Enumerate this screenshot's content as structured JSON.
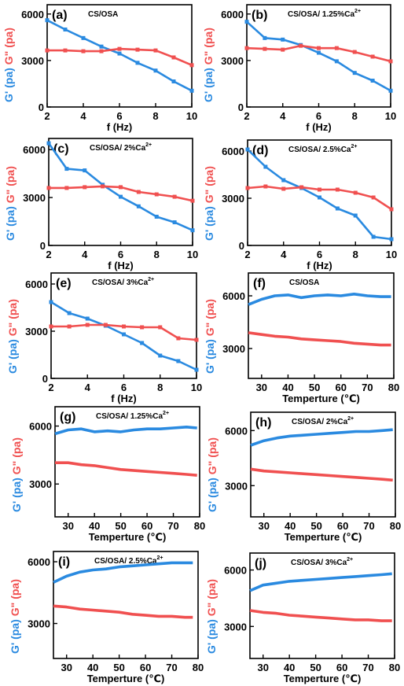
{
  "colors": {
    "g_prime": "#2a8ae0",
    "g_double_prime": "#f05050",
    "axis": "#000000"
  },
  "chart_data": [
    {
      "id": "a",
      "type": "line",
      "panel_label": "(a)",
      "title": "CS/OSA",
      "title_sup": "",
      "xlabel": "f (Hz)",
      "ylabel_left": "G' (pa)",
      "ylabel_right": "G\" (pa)",
      "xlim": [
        2,
        10
      ],
      "ylim": [
        0,
        6600
      ],
      "xticks": [
        2,
        4,
        6,
        8,
        10
      ],
      "yticks": [
        0,
        3000,
        6000
      ],
      "xtick_labels": [
        "2",
        "4",
        "6",
        "8",
        "10"
      ],
      "ytick_labels": [
        "0",
        "3000",
        "6000"
      ],
      "markers": true,
      "legend": "none",
      "series": [
        {
          "key": "g_prime",
          "x": [
            2,
            3,
            4,
            5,
            6,
            7,
            8,
            9,
            10
          ],
          "y": [
            5600,
            5000,
            4450,
            3900,
            3450,
            2850,
            2350,
            1650,
            1050
          ]
        },
        {
          "key": "g_double_prime",
          "x": [
            2,
            3,
            4,
            5,
            6,
            7,
            8,
            9,
            10
          ],
          "y": [
            3650,
            3650,
            3600,
            3600,
            3750,
            3700,
            3650,
            3200,
            2700
          ]
        }
      ]
    },
    {
      "id": "b",
      "type": "line",
      "panel_label": "(b)",
      "title": "CS/OSA/ 1.25%Ca",
      "title_sup": "2+",
      "xlabel": "f (Hz)",
      "ylabel_left": "G' (pa)",
      "ylabel_right": "G\" (pa)",
      "xlim": [
        2,
        10
      ],
      "ylim": [
        0,
        6600
      ],
      "xticks": [
        2,
        4,
        6,
        8,
        10
      ],
      "yticks": [
        0,
        3000,
        6000
      ],
      "xtick_labels": [
        "2",
        "4",
        "6",
        "8",
        "10"
      ],
      "ytick_labels": [
        "0",
        "3000",
        "6000"
      ],
      "markers": true,
      "legend": "none",
      "series": [
        {
          "key": "g_prime",
          "x": [
            2,
            3,
            4,
            5,
            6,
            7,
            8,
            9,
            10
          ],
          "y": [
            5500,
            4450,
            4350,
            4000,
            3500,
            2950,
            2200,
            1700,
            1050
          ]
        },
        {
          "key": "g_double_prime",
          "x": [
            2,
            3,
            4,
            5,
            6,
            7,
            8,
            9,
            10
          ],
          "y": [
            3800,
            3750,
            3700,
            3950,
            3800,
            3800,
            3550,
            3250,
            2950
          ]
        }
      ]
    },
    {
      "id": "c",
      "type": "line",
      "panel_label": "(c)",
      "title": "CS/OSA/ 2%Ca",
      "title_sup": "2+",
      "xlabel": "f (Hz)",
      "ylabel_left": "G' (pa)",
      "ylabel_right": "G\" (pa)",
      "xlim": [
        2,
        10
      ],
      "ylim": [
        0,
        6700
      ],
      "xticks": [
        2,
        4,
        6,
        8,
        10
      ],
      "yticks": [
        0,
        3000,
        6000
      ],
      "xtick_labels": [
        "2",
        "4",
        "6",
        "8",
        "10"
      ],
      "ytick_labels": [
        "0",
        "3000",
        "6000"
      ],
      "markers": true,
      "legend": "none",
      "series": [
        {
          "key": "g_prime",
          "x": [
            2,
            3,
            4,
            5,
            6,
            7,
            8,
            9,
            10
          ],
          "y": [
            6400,
            4800,
            4700,
            3800,
            3050,
            2450,
            1800,
            1450,
            950
          ]
        },
        {
          "key": "g_double_prime",
          "x": [
            2,
            3,
            4,
            5,
            6,
            7,
            8,
            9,
            10
          ],
          "y": [
            3600,
            3600,
            3650,
            3700,
            3650,
            3350,
            3200,
            3050,
            2800
          ]
        }
      ]
    },
    {
      "id": "d",
      "type": "line",
      "panel_label": "(d)",
      "title": "CS/OSA/ 2.5%Ca",
      "title_sup": "2+",
      "xlabel": "f (Hz)",
      "ylabel_left": "G' (pa)",
      "ylabel_right": "G\" (pa)",
      "xlim": [
        2,
        10
      ],
      "ylim": [
        0,
        6700
      ],
      "xticks": [
        2,
        4,
        6,
        8,
        10
      ],
      "yticks": [
        0,
        3000,
        6000
      ],
      "xtick_labels": [
        "2",
        "4",
        "6",
        "8",
        "10"
      ],
      "ytick_labels": [
        "0",
        "3000",
        "6000"
      ],
      "markers": true,
      "legend": "none",
      "series": [
        {
          "key": "g_prime",
          "x": [
            2,
            3,
            4,
            5,
            6,
            7,
            8,
            9,
            10
          ],
          "y": [
            6100,
            5000,
            4150,
            3650,
            3050,
            2350,
            1900,
            550,
            400
          ]
        },
        {
          "key": "g_double_prime",
          "x": [
            2,
            3,
            4,
            5,
            6,
            7,
            8,
            9,
            10
          ],
          "y": [
            3650,
            3750,
            3600,
            3700,
            3550,
            3550,
            3350,
            3050,
            2300
          ]
        }
      ]
    },
    {
      "id": "e",
      "type": "line",
      "panel_label": "(e)",
      "title": "CS/OSA/ 3%Ca",
      "title_sup": "2+",
      "xlabel": "f (Hz)",
      "ylabel_left": "G' (pa)",
      "ylabel_right": "G\" (pa)",
      "xlim": [
        2,
        10
      ],
      "ylim": [
        0,
        6700
      ],
      "xticks": [
        2,
        4,
        6,
        8,
        10
      ],
      "yticks": [
        0,
        3000,
        6000
      ],
      "xtick_labels": [
        "2",
        "4",
        "6",
        "8",
        "10"
      ],
      "ytick_labels": [
        "0",
        "3000",
        "6000"
      ],
      "markers": true,
      "legend": "none",
      "series": [
        {
          "key": "g_prime",
          "x": [
            2,
            3,
            4,
            5,
            6,
            7,
            8,
            9,
            10
          ],
          "y": [
            4850,
            4150,
            3800,
            3350,
            2800,
            2250,
            1450,
            1100,
            550
          ]
        },
        {
          "key": "g_double_prime",
          "x": [
            2,
            3,
            4,
            5,
            6,
            7,
            8,
            9,
            10
          ],
          "y": [
            3300,
            3300,
            3400,
            3400,
            3300,
            3250,
            3250,
            2550,
            2450
          ]
        }
      ]
    },
    {
      "id": "f",
      "type": "line",
      "panel_label": "(f)",
      "title": "CS/OSA",
      "title_sup": "",
      "xlabel": "Temperture (℃)",
      "ylabel_left": "G' (pa)",
      "ylabel_right": "G\" (pa)",
      "xlim": [
        25,
        80
      ],
      "ylim": [
        1300,
        7300
      ],
      "xticks": [
        30,
        40,
        50,
        60,
        70,
        80
      ],
      "yticks": [
        3000,
        6000
      ],
      "xtick_labels": [
        "30",
        "40",
        "50",
        "60",
        "70",
        "80"
      ],
      "ytick_labels": [
        "3000",
        "6000"
      ],
      "markers": false,
      "legend": "none",
      "series": [
        {
          "key": "g_prime",
          "x": [
            25,
            30,
            35,
            40,
            45,
            50,
            55,
            60,
            65,
            70,
            75,
            79
          ],
          "y": [
            5500,
            5800,
            6000,
            6050,
            5900,
            6000,
            6050,
            6000,
            6100,
            6000,
            5950,
            5950
          ]
        },
        {
          "key": "g_double_prime",
          "x": [
            25,
            30,
            35,
            40,
            45,
            50,
            55,
            60,
            65,
            70,
            75,
            79
          ],
          "y": [
            3900,
            3800,
            3700,
            3650,
            3550,
            3500,
            3450,
            3400,
            3300,
            3250,
            3200,
            3200
          ]
        }
      ]
    },
    {
      "id": "g",
      "type": "line",
      "panel_label": "(g)",
      "title": "CS/OSA/ 1.25%Ca",
      "title_sup": "2+",
      "xlabel": "Temperture (℃)",
      "ylabel_left": "G' (pa)",
      "ylabel_right": "G\" (pa)",
      "xlim": [
        25,
        80
      ],
      "ylim": [
        1300,
        7000
      ],
      "xticks": [
        30,
        40,
        50,
        60,
        70,
        80
      ],
      "yticks": [
        3000,
        6000
      ],
      "xtick_labels": [
        "30",
        "40",
        "50",
        "60",
        "70",
        "80"
      ],
      "ytick_labels": [
        "3000",
        "6000"
      ],
      "markers": false,
      "legend": "none",
      "series": [
        {
          "key": "g_prime",
          "x": [
            25,
            30,
            35,
            40,
            45,
            50,
            55,
            60,
            65,
            70,
            75,
            79
          ],
          "y": [
            5600,
            5800,
            5850,
            5700,
            5750,
            5700,
            5800,
            5850,
            5850,
            5900,
            5950,
            5900
          ]
        },
        {
          "key": "g_double_prime",
          "x": [
            25,
            30,
            35,
            40,
            45,
            50,
            55,
            60,
            65,
            70,
            75,
            79
          ],
          "y": [
            4100,
            4100,
            4000,
            3950,
            3850,
            3750,
            3700,
            3650,
            3600,
            3550,
            3500,
            3450
          ]
        }
      ]
    },
    {
      "id": "h",
      "type": "line",
      "panel_label": "(h)",
      "title": "CS/OSA/ 2%Ca",
      "title_sup": "2+",
      "xlabel": "Temperture (℃)",
      "ylabel_left": "G' (pa)",
      "ylabel_right": "G\" (pa)",
      "xlim": [
        25,
        80
      ],
      "ylim": [
        1300,
        7000
      ],
      "xticks": [
        30,
        40,
        50,
        60,
        70,
        80
      ],
      "yticks": [
        3000,
        6000
      ],
      "xtick_labels": [
        "30",
        "40",
        "50",
        "60",
        "70",
        "80"
      ],
      "ytick_labels": [
        "3000",
        "6000"
      ],
      "markers": false,
      "legend": "none",
      "series": [
        {
          "key": "g_prime",
          "x": [
            25,
            30,
            35,
            40,
            45,
            50,
            55,
            60,
            65,
            70,
            75,
            79
          ],
          "y": [
            5200,
            5450,
            5600,
            5700,
            5750,
            5800,
            5850,
            5900,
            5950,
            5950,
            6000,
            6050
          ]
        },
        {
          "key": "g_double_prime",
          "x": [
            25,
            30,
            35,
            40,
            45,
            50,
            55,
            60,
            65,
            70,
            75,
            79
          ],
          "y": [
            3900,
            3800,
            3750,
            3700,
            3650,
            3600,
            3550,
            3500,
            3450,
            3400,
            3350,
            3300
          ]
        }
      ]
    },
    {
      "id": "i",
      "type": "line",
      "panel_label": "(i)",
      "title": "CS/OSA/ 2.5%Ca",
      "title_sup": "2+",
      "xlabel": "Temperture (℃)",
      "ylabel_left": "G' (pa)",
      "ylabel_right": "G\" (pa)",
      "xlim": [
        25,
        80
      ],
      "ylim": [
        1300,
        6500
      ],
      "xticks": [
        30,
        40,
        50,
        60,
        70,
        80
      ],
      "yticks": [
        3000,
        6000
      ],
      "xtick_labels": [
        "30",
        "40",
        "50",
        "60",
        "70",
        "80"
      ],
      "ytick_labels": [
        "3000",
        "6000"
      ],
      "markers": false,
      "legend": "none",
      "series": [
        {
          "key": "g_prime",
          "x": [
            25,
            30,
            35,
            40,
            45,
            50,
            55,
            60,
            65,
            70,
            75,
            78
          ],
          "y": [
            5000,
            5300,
            5500,
            5600,
            5650,
            5750,
            5800,
            5850,
            5900,
            5950,
            5950,
            5950
          ]
        },
        {
          "key": "g_double_prime",
          "x": [
            25,
            30,
            35,
            40,
            45,
            50,
            55,
            60,
            65,
            70,
            75,
            78
          ],
          "y": [
            3850,
            3800,
            3700,
            3650,
            3600,
            3550,
            3450,
            3400,
            3350,
            3350,
            3300,
            3300
          ]
        }
      ]
    },
    {
      "id": "j",
      "type": "line",
      "panel_label": "(j)",
      "title": "CS/OSA/ 3%Ca",
      "title_sup": "2+",
      "xlabel": "Temperture (℃)",
      "ylabel_left": "G' (pa)",
      "ylabel_right": "G\" (pa)",
      "xlim": [
        25,
        80
      ],
      "ylim": [
        1300,
        6900
      ],
      "xticks": [
        30,
        40,
        50,
        60,
        70,
        80
      ],
      "yticks": [
        3000,
        6000
      ],
      "xtick_labels": [
        "30",
        "40",
        "50",
        "60",
        "70",
        "80"
      ],
      "ytick_labels": [
        "3000",
        "6000"
      ],
      "markers": false,
      "legend": "none",
      "series": [
        {
          "key": "g_prime",
          "x": [
            25,
            30,
            35,
            40,
            45,
            50,
            55,
            60,
            65,
            70,
            75,
            79
          ],
          "y": [
            4900,
            5200,
            5300,
            5400,
            5450,
            5500,
            5550,
            5600,
            5650,
            5700,
            5750,
            5800
          ]
        },
        {
          "key": "g_double_prime",
          "x": [
            25,
            30,
            35,
            40,
            45,
            50,
            55,
            60,
            65,
            70,
            75,
            79
          ],
          "y": [
            3850,
            3750,
            3700,
            3600,
            3550,
            3500,
            3450,
            3400,
            3350,
            3350,
            3300,
            3300
          ]
        }
      ]
    }
  ]
}
